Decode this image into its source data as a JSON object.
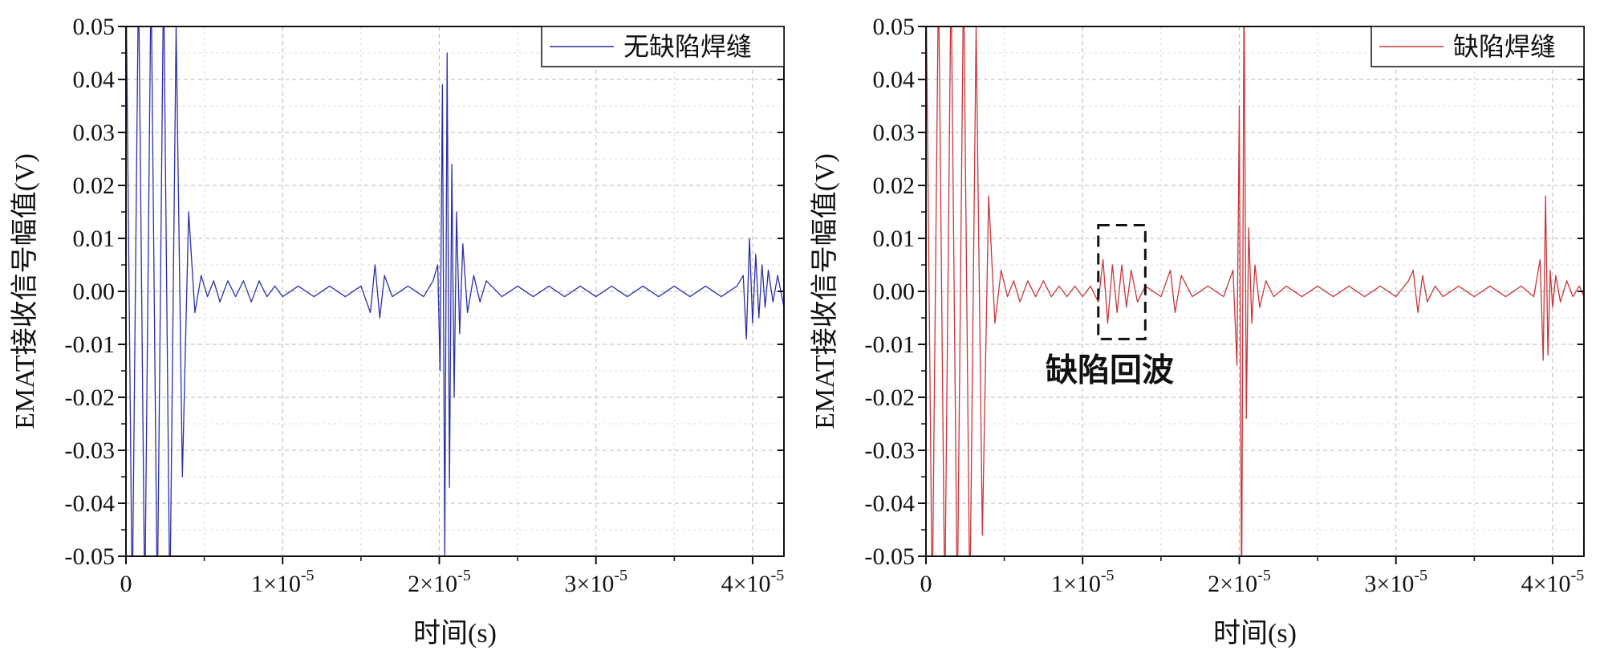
{
  "chart_data": [
    {
      "type": "line",
      "xlabel": "时间(s)",
      "ylabel": "EMAT接收信号幅值(V)",
      "xlim": [
        0,
        4.2e-05
      ],
      "ylim": [
        -0.05,
        0.05
      ],
      "grid": true,
      "legend_position": "top-right",
      "x_ticks": [
        0,
        1e-05,
        2e-05,
        3e-05,
        4e-05
      ],
      "x_tick_labels": [
        {
          "mantissa": "0",
          "power": ""
        },
        {
          "mantissa": "1×10",
          "power": "-5"
        },
        {
          "mantissa": "2×10",
          "power": "-5"
        },
        {
          "mantissa": "3×10",
          "power": "-5"
        },
        {
          "mantissa": "4×10",
          "power": "-5"
        }
      ],
      "y_ticks": [
        0.05,
        0.04,
        0.03,
        0.02,
        0.01,
        0.0,
        -0.01,
        -0.02,
        -0.03,
        -0.04,
        -0.05
      ],
      "y_tick_labels": [
        "0.05",
        "0.04",
        "0.03",
        "0.02",
        "0.01",
        "0.00",
        "-0.01",
        "-0.02",
        "-0.03",
        "-0.04",
        "-0.05"
      ],
      "series": [
        {
          "name": "无缺陷焊缝",
          "color": "#2b2fa8",
          "x": [
            0,
            4e-07,
            8e-07,
            1.2e-06,
            1.6e-06,
            2e-06,
            2.4e-06,
            2.8e-06,
            3.2e-06,
            3.6e-06,
            4e-06,
            4.4e-06,
            4.8e-06,
            5.2e-06,
            5.6e-06,
            6e-06,
            6.5e-06,
            7e-06,
            7.5e-06,
            8e-06,
            8.5e-06,
            9e-06,
            9.5e-06,
            1e-05,
            1.1e-05,
            1.2e-05,
            1.3e-05,
            1.4e-05,
            1.5e-05,
            1.56e-05,
            1.59e-05,
            1.62e-05,
            1.65e-05,
            1.7e-05,
            1.8e-05,
            1.9e-05,
            1.96e-05,
            1.99e-05,
            2.005e-05,
            2.02e-05,
            2.035e-05,
            2.05e-05,
            2.065e-05,
            2.08e-05,
            2.095e-05,
            2.11e-05,
            2.13e-05,
            2.15e-05,
            2.18e-05,
            2.22e-05,
            2.26e-05,
            2.3e-05,
            2.4e-05,
            2.5e-05,
            2.6e-05,
            2.7e-05,
            2.8e-05,
            2.9e-05,
            3e-05,
            3.1e-05,
            3.2e-05,
            3.3e-05,
            3.4e-05,
            3.5e-05,
            3.6e-05,
            3.7e-05,
            3.8e-05,
            3.9e-05,
            3.94e-05,
            3.96e-05,
            3.98e-05,
            4e-05,
            4.02e-05,
            4.04e-05,
            4.06e-05,
            4.08e-05,
            4.1e-05,
            4.13e-05,
            4.16e-05,
            4.2e-05
          ],
          "y": [
            0.06,
            -0.06,
            0.06,
            -0.06,
            0.06,
            -0.06,
            0.06,
            -0.06,
            0.05,
            -0.035,
            0.015,
            -0.004,
            0.003,
            -0.001,
            0.002,
            -0.002,
            0.002,
            -0.001,
            0.002,
            -0.002,
            0.002,
            -0.001,
            0.001,
            -0.001,
            0.001,
            -0.001,
            0.001,
            -0.001,
            0.001,
            -0.004,
            0.005,
            -0.005,
            0.003,
            -0.001,
            0.001,
            -0.001,
            0.002,
            0.005,
            -0.015,
            0.039,
            -0.05,
            0.045,
            -0.037,
            0.024,
            -0.02,
            0.015,
            -0.008,
            0.009,
            -0.004,
            0.003,
            -0.002,
            0.002,
            -0.001,
            0.001,
            -0.001,
            0.001,
            -0.001,
            0.001,
            -0.001,
            0.001,
            -0.001,
            0.001,
            -0.001,
            0.001,
            -0.001,
            0.001,
            -0.001,
            0.001,
            0.003,
            -0.009,
            0.01,
            -0.006,
            0.007,
            -0.005,
            0.005,
            -0.003,
            0.004,
            -0.002,
            0.003,
            -0.003
          ]
        }
      ]
    },
    {
      "type": "line",
      "xlabel": "时间(s)",
      "ylabel": "EMAT接收信号幅值(V)",
      "xlim": [
        0,
        4.2e-05
      ],
      "ylim": [
        -0.05,
        0.05
      ],
      "grid": true,
      "legend_position": "top-right",
      "x_ticks": [
        0,
        1e-05,
        2e-05,
        3e-05,
        4e-05
      ],
      "x_tick_labels": [
        {
          "mantissa": "0",
          "power": ""
        },
        {
          "mantissa": "1×10",
          "power": "-5"
        },
        {
          "mantissa": "2×10",
          "power": "-5"
        },
        {
          "mantissa": "3×10",
          "power": "-5"
        },
        {
          "mantissa": "4×10",
          "power": "-5"
        }
      ],
      "y_ticks": [
        0.05,
        0.04,
        0.03,
        0.02,
        0.01,
        0.0,
        -0.01,
        -0.02,
        -0.03,
        -0.04,
        -0.05
      ],
      "y_tick_labels": [
        "0.05",
        "0.04",
        "0.03",
        "0.02",
        "0.01",
        "0.00",
        "-0.01",
        "-0.02",
        "-0.03",
        "-0.04",
        "-0.05"
      ],
      "series": [
        {
          "name": "缺陷焊缝",
          "color": "#c8363a",
          "x": [
            0,
            4e-07,
            8e-07,
            1.2e-06,
            1.6e-06,
            2e-06,
            2.4e-06,
            2.8e-06,
            3.2e-06,
            3.6e-06,
            4e-06,
            4.4e-06,
            4.8e-06,
            5.2e-06,
            5.6e-06,
            6e-06,
            6.5e-06,
            7e-06,
            7.5e-06,
            8e-06,
            8.5e-06,
            9e-06,
            9.5e-06,
            1e-05,
            1.05e-05,
            1.1e-05,
            1.13e-05,
            1.16e-05,
            1.19e-05,
            1.22e-05,
            1.25e-05,
            1.28e-05,
            1.31e-05,
            1.35e-05,
            1.4e-05,
            1.5e-05,
            1.56e-05,
            1.59e-05,
            1.63e-05,
            1.7e-05,
            1.8e-05,
            1.9e-05,
            1.96e-05,
            1.985e-05,
            2e-05,
            2.015e-05,
            2.03e-05,
            2.045e-05,
            2.06e-05,
            2.08e-05,
            2.1e-05,
            2.13e-05,
            2.17e-05,
            2.22e-05,
            2.3e-05,
            2.4e-05,
            2.5e-05,
            2.6e-05,
            2.7e-05,
            2.8e-05,
            2.9e-05,
            3e-05,
            3.08e-05,
            3.11e-05,
            3.14e-05,
            3.17e-05,
            3.2e-05,
            3.25e-05,
            3.3e-05,
            3.4e-05,
            3.5e-05,
            3.6e-05,
            3.7e-05,
            3.8e-05,
            3.88e-05,
            3.92e-05,
            3.94e-05,
            3.955e-05,
            3.97e-05,
            3.985e-05,
            4e-05,
            4.02e-05,
            4.05e-05,
            4.09e-05,
            4.13e-05,
            4.17e-05,
            4.2e-05
          ],
          "y": [
            0.06,
            -0.06,
            0.06,
            -0.06,
            0.06,
            -0.06,
            0.06,
            -0.06,
            0.05,
            -0.046,
            0.018,
            -0.006,
            0.004,
            -0.001,
            0.002,
            -0.002,
            0.002,
            -0.001,
            0.002,
            -0.001,
            0.001,
            -0.001,
            0.001,
            -0.001,
            0.001,
            -0.002,
            0.006,
            -0.006,
            0.005,
            -0.004,
            0.005,
            -0.003,
            0.004,
            -0.002,
            0.001,
            -0.001,
            0.004,
            -0.004,
            0.003,
            -0.001,
            0.001,
            -0.001,
            0.004,
            -0.014,
            0.035,
            -0.06,
            0.06,
            -0.024,
            0.012,
            -0.006,
            0.005,
            -0.003,
            0.002,
            -0.001,
            0.001,
            -0.001,
            0.001,
            -0.001,
            0.001,
            -0.001,
            0.001,
            -0.001,
            0.002,
            0.004,
            -0.004,
            0.003,
            -0.002,
            0.001,
            -0.001,
            0.001,
            -0.001,
            0.001,
            -0.001,
            0.001,
            -0.001,
            0.006,
            -0.013,
            0.018,
            -0.012,
            0.004,
            -0.003,
            0.003,
            -0.002,
            0.002,
            -0.001,
            0.001,
            -0.001
          ]
        }
      ],
      "annotation": {
        "label": "缺陷回波",
        "x_range": [
          1.1e-05,
          1.4e-05
        ],
        "y_range": [
          -0.009,
          0.0125
        ]
      }
    }
  ]
}
